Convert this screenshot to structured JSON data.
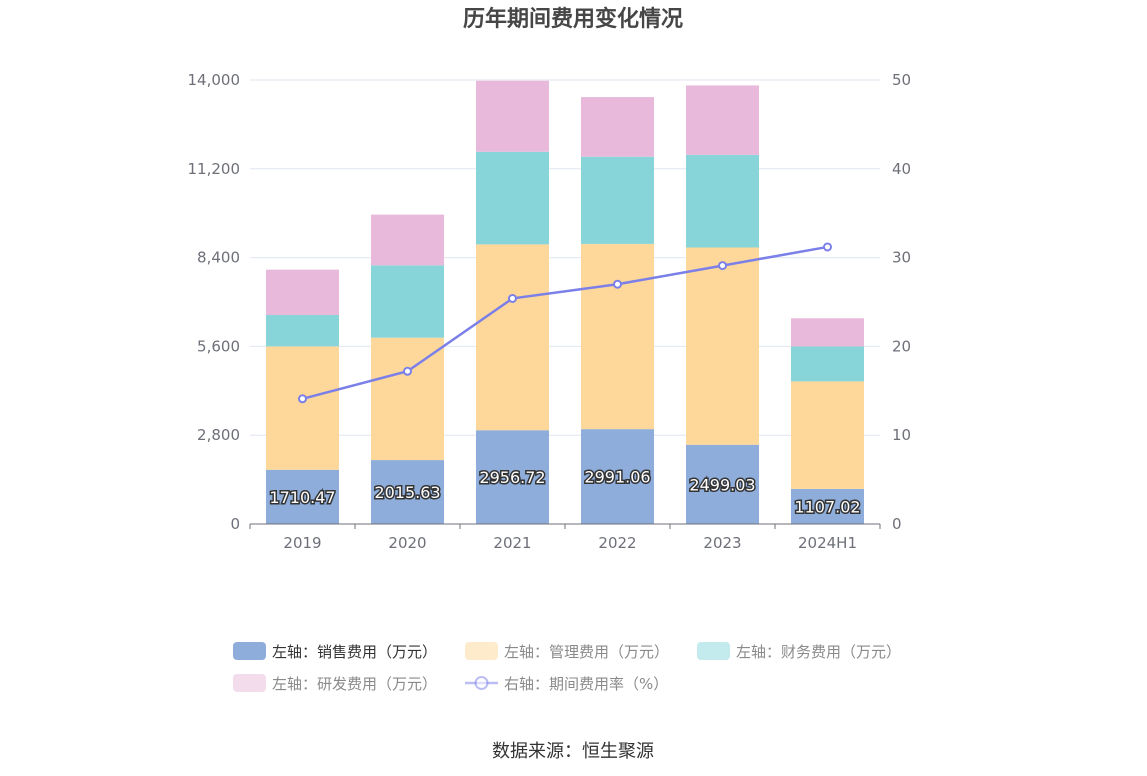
{
  "chart_data": {
    "type": "bar",
    "title": "历年期间费用变化情况",
    "categories": [
      "2019",
      "2020",
      "2021",
      "2022",
      "2023",
      "2024H1"
    ],
    "stacked": true,
    "y_left": {
      "min": 0,
      "max": 14000,
      "ticks": [
        "0",
        "2,800",
        "5,600",
        "8,400",
        "11,200",
        "14,000"
      ]
    },
    "y_right": {
      "min": 0,
      "max": 50,
      "ticks": [
        "0",
        "10",
        "20",
        "30",
        "40",
        "50"
      ]
    },
    "series": [
      {
        "name": "左轴：销售费用（万元）",
        "axis": "left",
        "type": "bar",
        "color": "#8eadda",
        "values": [
          1710.47,
          2015.63,
          2956.72,
          2991.06,
          2499.03,
          1107.02
        ],
        "labels": [
          "1710.47",
          "2015.63",
          "2956.72",
          "2991.06",
          "2499.03",
          "1107.02"
        ]
      },
      {
        "name": "左轴：管理费用（万元）",
        "axis": "left",
        "type": "bar",
        "color": "#fed89a",
        "values": [
          3890,
          3860,
          5860,
          5840,
          6220,
          3390
        ]
      },
      {
        "name": "左轴：财务费用（万元）",
        "axis": "left",
        "type": "bar",
        "color": "#88d5d9",
        "values": [
          990,
          2280,
          2920,
          2750,
          2920,
          1100
        ]
      },
      {
        "name": "左轴：研发费用（万元）",
        "axis": "left",
        "type": "bar",
        "color": "#e8b9da",
        "values": [
          1430,
          1600,
          2240,
          1880,
          2190,
          890
        ]
      },
      {
        "name": "右轴：期间费用率（%）",
        "axis": "right",
        "type": "line",
        "color": "#7b7fe8",
        "values": [
          14.1,
          17.2,
          25.4,
          27.0,
          29.1,
          31.2
        ]
      }
    ],
    "legend": {
      "placement": "bottom"
    },
    "grid": true
  },
  "source_text": "数据来源：恒生聚源"
}
